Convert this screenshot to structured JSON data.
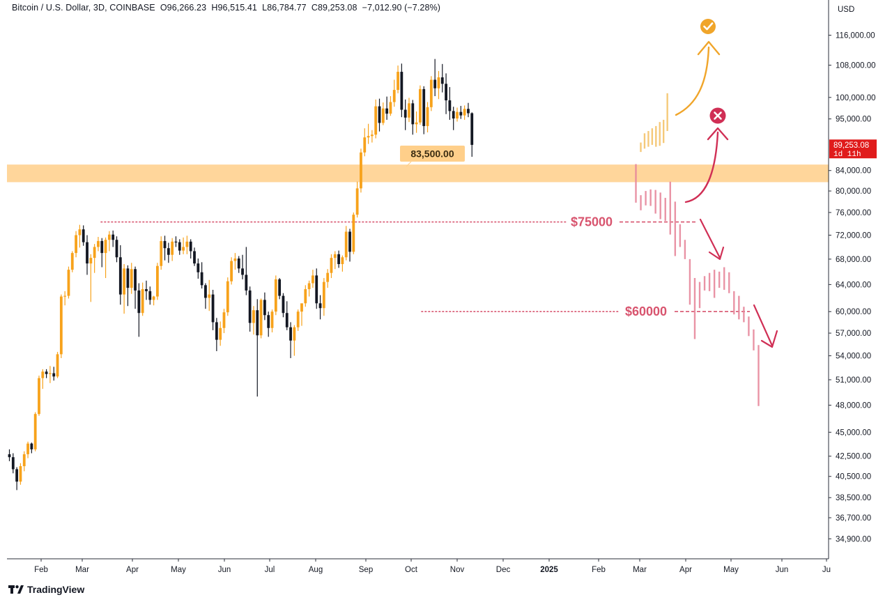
{
  "header": {
    "symbol": "Bitcoin / U.S. Dollar, 3D, COINBASE",
    "o_label": "O",
    "o_value": "96,266.23",
    "h_label": "H",
    "h_value": "96,515.41",
    "l_label": "L",
    "l_value": "86,784.77",
    "c_label": "C",
    "c_value": "89,253.08",
    "change": "−7,012.90 (−7.28%)"
  },
  "footer": {
    "brand": "TradingView"
  },
  "colors": {
    "up": "#f7a21b",
    "down": "#131722",
    "zone": "#ffcf8a",
    "proj_up": "#f5c46c",
    "proj_down": "#e7889c",
    "line_red": "#d8546e",
    "arrow_up": "#f0a52a",
    "arrow_red": "#d02f55",
    "badge_red": "#e01b1b"
  },
  "chart_data": {
    "type": "candlestick",
    "title": "Bitcoin / U.S. Dollar, 3D, COINBASE",
    "currency": "USD",
    "price_axis": {
      "ticks": [
        "116,000.00",
        "108,000.00",
        "100,000.00",
        "95,000.00",
        "84,000.00",
        "80,000.00",
        "76,000.00",
        "72,000.00",
        "68,000.00",
        "64,000.00",
        "60,000.00",
        "57,000.00",
        "54,000.00",
        "51,000.00",
        "48,000.00",
        "45,000.00",
        "42,500.00",
        "40,500.00",
        "38,500.00",
        "36,700.00",
        "34,900.00"
      ],
      "scale": "log"
    },
    "time_axis": {
      "labels": [
        "Feb",
        "Mar",
        "Apr",
        "May",
        "Jun",
        "Jul",
        "Aug",
        "Sep",
        "Oct",
        "Nov",
        "Dec",
        "2025",
        "Feb",
        "Mar",
        "Apr",
        "May",
        "Jun",
        "Ju"
      ],
      "bold": [
        "2025"
      ]
    },
    "current_price": {
      "value": "89,253.08",
      "countdown": "1d 11h"
    },
    "zone": {
      "label": "83,500.00",
      "low": 81700,
      "high": 85200
    },
    "levels": [
      {
        "label": "$75000",
        "value": 74300
      },
      {
        "label": "$60000",
        "value": 60000
      }
    ],
    "candles": [
      [
        42700,
        43200,
        42000,
        42400
      ],
      [
        42400,
        42800,
        40800,
        41200
      ],
      [
        41200,
        41400,
        39200,
        40000
      ],
      [
        40000,
        41800,
        39700,
        41500
      ],
      [
        41500,
        43000,
        41000,
        42700
      ],
      [
        42700,
        44000,
        42300,
        43800
      ],
      [
        43800,
        43900,
        42800,
        43200
      ],
      [
        43200,
        47200,
        43000,
        47000
      ],
      [
        47000,
        51500,
        46800,
        51200
      ],
      [
        51200,
        52300,
        49900,
        52000
      ],
      [
        52000,
        52300,
        51200,
        51700
      ],
      [
        51700,
        52700,
        50600,
        51800
      ],
      [
        51800,
        52600,
        50900,
        51400
      ],
      [
        51400,
        54500,
        51200,
        54200
      ],
      [
        54200,
        62500,
        53700,
        62200
      ],
      [
        62200,
        63000,
        60900,
        62300
      ],
      [
        62300,
        66800,
        61900,
        66300
      ],
      [
        66300,
        69300,
        65900,
        69000
      ],
      [
        69000,
        72700,
        68300,
        72000
      ],
      [
        72000,
        73800,
        69900,
        73000
      ],
      [
        73000,
        73700,
        70200,
        70800
      ],
      [
        70800,
        72000,
        65500,
        67300
      ],
      [
        67300,
        68800,
        61400,
        68200
      ],
      [
        68200,
        70500,
        65800,
        70000
      ],
      [
        70000,
        71700,
        69300,
        71000
      ],
      [
        71000,
        71500,
        66700,
        69000
      ],
      [
        69000,
        71600,
        65000,
        71200
      ],
      [
        71200,
        72700,
        69300,
        72100
      ],
      [
        72100,
        72800,
        70000,
        71200
      ],
      [
        71200,
        71800,
        67500,
        68300
      ],
      [
        68300,
        70300,
        61000,
        62500
      ],
      [
        62500,
        67200,
        59700,
        66500
      ],
      [
        66500,
        67000,
        60800,
        63500
      ],
      [
        63500,
        67400,
        62600,
        66400
      ],
      [
        66400,
        66800,
        60400,
        63100
      ],
      [
        63100,
        64200,
        56500,
        59800
      ],
      [
        59800,
        64300,
        59400,
        63300
      ],
      [
        63300,
        64600,
        61700,
        63000
      ],
      [
        63000,
        63700,
        61000,
        61700
      ],
      [
        61700,
        62300,
        60900,
        62200
      ],
      [
        62200,
        67400,
        61700,
        66900
      ],
      [
        66900,
        71800,
        66300,
        71000
      ],
      [
        71000,
        71900,
        67800,
        69800
      ],
      [
        69800,
        70700,
        67400,
        68700
      ],
      [
        68700,
        71500,
        67700,
        70900
      ],
      [
        70900,
        71800,
        70000,
        70800
      ],
      [
        70800,
        71300,
        68700,
        69400
      ],
      [
        69400,
        71600,
        68800,
        70000
      ],
      [
        70000,
        71900,
        68800,
        70900
      ],
      [
        70900,
        71300,
        68100,
        69300
      ],
      [
        69300,
        69900,
        66900,
        67300
      ],
      [
        67300,
        68100,
        64900,
        65900
      ],
      [
        65900,
        67500,
        63400,
        63900
      ],
      [
        63900,
        64200,
        60400,
        62000
      ],
      [
        62000,
        64700,
        60100,
        62500
      ],
      [
        62500,
        63200,
        57400,
        58500
      ],
      [
        58500,
        59100,
        54600,
        56100
      ],
      [
        56100,
        58600,
        55300,
        57700
      ],
      [
        57700,
        60400,
        57000,
        59900
      ],
      [
        59900,
        65100,
        59400,
        64500
      ],
      [
        64500,
        68300,
        64000,
        67700
      ],
      [
        67700,
        69000,
        66300,
        68100
      ],
      [
        68100,
        68500,
        65800,
        66500
      ],
      [
        66500,
        68700,
        64800,
        65500
      ],
      [
        65500,
        70000,
        62400,
        63100
      ],
      [
        63100,
        63700,
        57200,
        58400
      ],
      [
        58400,
        60800,
        56800,
        60200
      ],
      [
        60200,
        61800,
        49000,
        56700
      ],
      [
        56700,
        61900,
        56300,
        61700
      ],
      [
        61700,
        62800,
        58800,
        59500
      ],
      [
        59500,
        60000,
        56500,
        57700
      ],
      [
        57700,
        60300,
        57100,
        60000
      ],
      [
        60000,
        65400,
        59500,
        64800
      ],
      [
        64800,
        65000,
        61800,
        62300
      ],
      [
        62300,
        62700,
        59200,
        59800
      ],
      [
        59800,
        61500,
        57400,
        57800
      ],
      [
        57800,
        58500,
        53700,
        56000
      ],
      [
        56000,
        58100,
        54000,
        57800
      ],
      [
        57800,
        60300,
        57300,
        60000
      ],
      [
        60000,
        60500,
        58000,
        61200
      ],
      [
        61200,
        63900,
        60700,
        63300
      ],
      [
        63300,
        64600,
        62200,
        64200
      ],
      [
        64200,
        66300,
        63500,
        65400
      ],
      [
        65400,
        66500,
        60400,
        61200
      ],
      [
        61200,
        62400,
        58900,
        60500
      ],
      [
        60500,
        65000,
        59400,
        64400
      ],
      [
        64400,
        66400,
        63500,
        65800
      ],
      [
        65800,
        68800,
        65000,
        68200
      ],
      [
        68200,
        69300,
        66400,
        68800
      ],
      [
        68800,
        69400,
        66600,
        67200
      ],
      [
        67200,
        68600,
        66000,
        68300
      ],
      [
        68300,
        73600,
        67800,
        72600
      ],
      [
        72600,
        73100,
        67600,
        69200
      ],
      [
        69200,
        76000,
        68800,
        75600
      ],
      [
        75600,
        81800,
        75100,
        80500
      ],
      [
        80500,
        88500,
        79700,
        87700
      ],
      [
        87700,
        92900,
        86900,
        90900
      ],
      [
        90900,
        93900,
        89500,
        91200
      ],
      [
        91200,
        92500,
        89800,
        91500
      ],
      [
        91500,
        99500,
        90700,
        97900
      ],
      [
        97900,
        99700,
        92200,
        94100
      ],
      [
        94100,
        98800,
        93600,
        97400
      ],
      [
        97400,
        100200,
        94800,
        96200
      ],
      [
        96200,
        100300,
        95700,
        98900
      ],
      [
        98900,
        104300,
        97800,
        101800
      ],
      [
        101800,
        107900,
        101000,
        106300
      ],
      [
        106300,
        108400,
        95400,
        97100
      ],
      [
        97100,
        99500,
        92500,
        95300
      ],
      [
        95300,
        99900,
        94300,
        98600
      ],
      [
        98600,
        99400,
        91500,
        93800
      ],
      [
        93800,
        96700,
        91900,
        94200
      ],
      [
        94200,
        102900,
        93700,
        102000
      ],
      [
        102000,
        102700,
        91600,
        93400
      ],
      [
        93400,
        98900,
        92000,
        97700
      ],
      [
        97700,
        105200,
        96800,
        104300
      ],
      [
        104300,
        109600,
        100300,
        102200
      ],
      [
        102200,
        106500,
        99600,
        104900
      ],
      [
        104900,
        108300,
        101200,
        103300
      ],
      [
        103300,
        105900,
        96100,
        99300
      ],
      [
        99300,
        102500,
        94800,
        96800
      ],
      [
        96800,
        97800,
        92500,
        95100
      ],
      [
        95100,
        97600,
        94400,
        96600
      ],
      [
        96600,
        98000,
        95000,
        95800
      ],
      [
        95800,
        98100,
        94800,
        97300
      ],
      [
        97300,
        98700,
        95400,
        96300
      ],
      [
        96300,
        96500,
        86800,
        89300
      ]
    ],
    "projection_up": [
      [
        87800,
        89800
      ],
      [
        88500,
        91800
      ],
      [
        88900,
        92300
      ],
      [
        89300,
        92900
      ],
      [
        88900,
        93400
      ],
      [
        89100,
        94300
      ],
      [
        89700,
        94800
      ],
      [
        92300,
        101000
      ]
    ],
    "projection_down": [
      [
        85300,
        77800
      ],
      [
        79200,
        76400
      ],
      [
        80000,
        77300
      ],
      [
        80300,
        77200
      ],
      [
        80200,
        75800
      ],
      [
        79700,
        74800
      ],
      [
        78700,
        74500
      ],
      [
        81800,
        72100
      ],
      [
        78000,
        68500
      ],
      [
        73900,
        70000
      ],
      [
        71200,
        68000
      ],
      [
        68000,
        61000
      ],
      [
        65000,
        56200
      ],
      [
        64400,
        60500
      ],
      [
        65300,
        63100
      ],
      [
        65800,
        63000
      ],
      [
        66300,
        62000
      ],
      [
        66000,
        63500
      ],
      [
        66700,
        63200
      ],
      [
        65900,
        62700
      ],
      [
        63000,
        59600
      ],
      [
        62300,
        58900
      ],
      [
        60700,
        58500
      ],
      [
        59300,
        56600
      ],
      [
        57500,
        54700
      ],
      [
        55400,
        47900
      ]
    ]
  }
}
